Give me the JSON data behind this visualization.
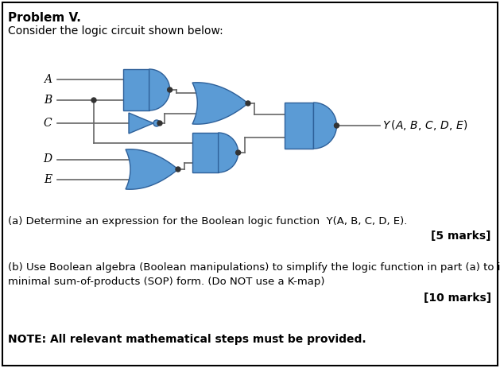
{
  "title": "Problem V.",
  "subtitle": "Consider the logic circuit shown below:",
  "gate_color": "#5b9bd5",
  "gate_edge_color": "#2e6099",
  "line_color": "#666666",
  "bg_color": "#ffffff",
  "border_color": "#000000",
  "text_color": "#000000",
  "part_a_text": "(a) Determine an expression for the Boolean logic function  Y(A, B, C, D, E).",
  "part_a_marks": "[5 marks]",
  "part_b_text1": "(b) Use Boolean algebra (Boolean manipulations) to simplify the logic function in part (a) to its",
  "part_b_text2": "minimal sum-of-products (SOP) form. (Do NOT use a K-map)",
  "part_b_marks": "[10 marks]",
  "note_text": "NOTE: All relevant mathematical steps must be provided.",
  "figsize": [
    6.29,
    4.63
  ],
  "dpi": 100
}
